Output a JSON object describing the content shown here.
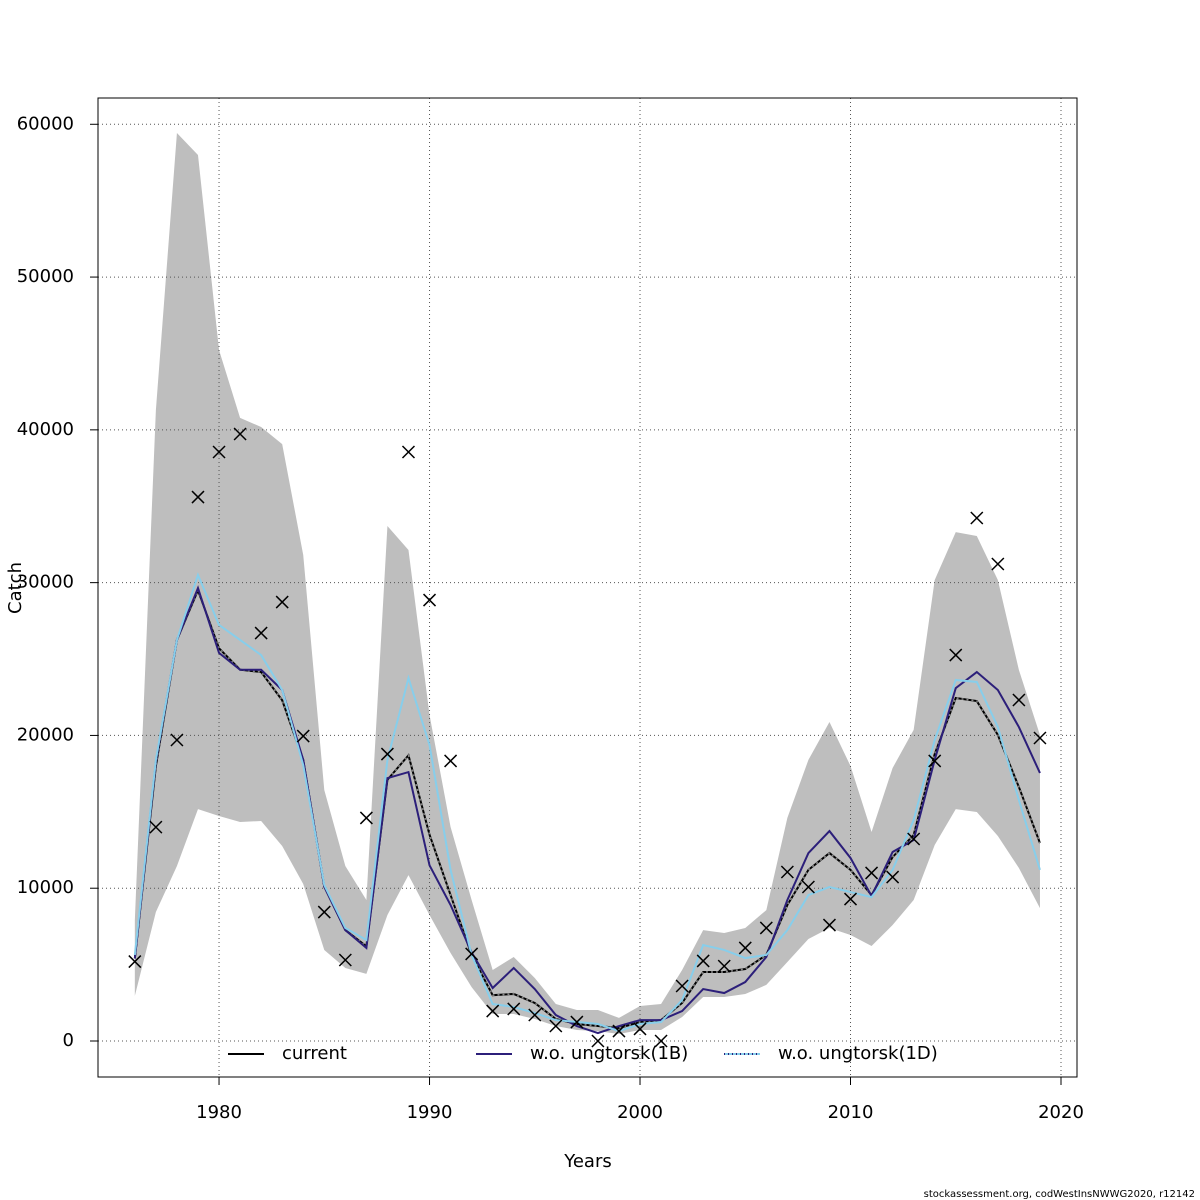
{
  "chart_data": {
    "type": "line",
    "xlabel": "Years",
    "ylabel": "Catch",
    "x": [
      1976,
      1977,
      1978,
      1979,
      1980,
      1981,
      1982,
      1983,
      1984,
      1985,
      1986,
      1987,
      1988,
      1989,
      1990,
      1991,
      1992,
      1993,
      1994,
      1995,
      1996,
      1997,
      1998,
      1999,
      2000,
      2001,
      2002,
      2003,
      2004,
      2005,
      2006,
      2007,
      2008,
      2009,
      2010,
      2011,
      2012,
      2013,
      2014,
      2015,
      2016,
      2017,
      2018,
      2019
    ],
    "band": {
      "color": "#bebebe",
      "upper": [
        7900,
        41300,
        59430,
        57990,
        45230,
        40780,
        40190,
        39070,
        31810,
        16430,
        11450,
        9230,
        33710,
        32140,
        21340,
        14010,
        9230,
        4650,
        5500,
        4120,
        2420,
        2030,
        2030,
        1510,
        2290,
        2420,
        4650,
        7260,
        7070,
        7400,
        8570,
        14600,
        18400,
        20880,
        18000,
        13680,
        17870,
        20360,
        30170,
        33310,
        33050,
        30170,
        24280,
        20030
      ],
      "lower": [
        2950,
        8440,
        11450,
        15180,
        14730,
        14330,
        14400,
        12760,
        10280,
        5960,
        4780,
        4390,
        8250,
        10860,
        8250,
        5760,
        3530,
        1770,
        1770,
        1440,
        980,
        720,
        650,
        460,
        720,
        720,
        1570,
        2880,
        2880,
        3080,
        3670,
        5170,
        6680,
        7400,
        6940,
        6220,
        7590,
        9230,
        12830,
        15180,
        14990,
        13420,
        11320,
        8700
      ]
    },
    "series": [
      {
        "name": "current",
        "color": "#000000",
        "values": [
          5400,
          18000,
          26250,
          29500,
          25700,
          24300,
          24150,
          22300,
          18400,
          10100,
          7260,
          6200,
          17100,
          18700,
          13500,
          9550,
          5630,
          3000,
          3080,
          2490,
          1440,
          1110,
          980,
          850,
          1240,
          1370,
          2490,
          4520,
          4520,
          4710,
          5630,
          8900,
          11200,
          12300,
          11200,
          9550,
          12040,
          13480,
          18780,
          22450,
          22250,
          20030,
          16620,
          12960
        ]
      },
      {
        "name": "w.o. ungtorsk(1B)",
        "color": "#2c1f7a",
        "values": [
          5400,
          18260,
          26250,
          29650,
          25400,
          24300,
          24300,
          22970,
          18400,
          10100,
          7260,
          6090,
          17200,
          17600,
          11500,
          8900,
          5800,
          3470,
          4780,
          3400,
          1700,
          980,
          520,
          980,
          1370,
          1370,
          1960,
          3400,
          3140,
          3860,
          5500,
          9230,
          12300,
          13740,
          11980,
          9490,
          12370,
          13160,
          18400,
          23100,
          24150,
          22970,
          20550,
          17540
        ]
      },
      {
        "name": "w.o. ungtorsk(1D)",
        "color": "#87ceeb",
        "values": [
          5630,
          18400,
          26250,
          30500,
          27230,
          26250,
          25260,
          22970,
          18060,
          10210,
          7400,
          6610,
          18400,
          23760,
          19370,
          11200,
          5630,
          2420,
          2230,
          1830,
          1370,
          1240,
          1110,
          650,
          1110,
          1240,
          2680,
          6280,
          5960,
          5430,
          5630,
          7260,
          9550,
          10080,
          9750,
          9420,
          11200,
          14460,
          19700,
          23630,
          23500,
          20550,
          15770,
          11200
        ]
      }
    ],
    "points": {
      "color": "#000000",
      "values": [
        5200,
        14000,
        19700,
        35600,
        38550,
        39730,
        26700,
        28730,
        19960,
        8440,
        5300,
        14600,
        18780,
        38550,
        28860,
        18330,
        5700,
        1960,
        2100,
        1700,
        980,
        1240,
        0,
        650,
        790,
        0,
        3600,
        5240,
        4900,
        6090,
        7400,
        11060,
        10080,
        7590,
        9290,
        11000,
        10730,
        13220,
        18330,
        25260,
        34230,
        31220,
        22320,
        19830
      ]
    },
    "xlim": [
      1974.25,
      2020.76
    ],
    "ylim": [
      -2356,
      61720
    ],
    "xticks": [
      1980,
      1990,
      2000,
      2010,
      2020
    ],
    "yticks": [
      0,
      10000,
      20000,
      30000,
      40000,
      50000,
      60000
    ],
    "grid": true,
    "legend": "bottom"
  },
  "footer": "stockassessment.org, codWestInsNWWG2020, r12142"
}
